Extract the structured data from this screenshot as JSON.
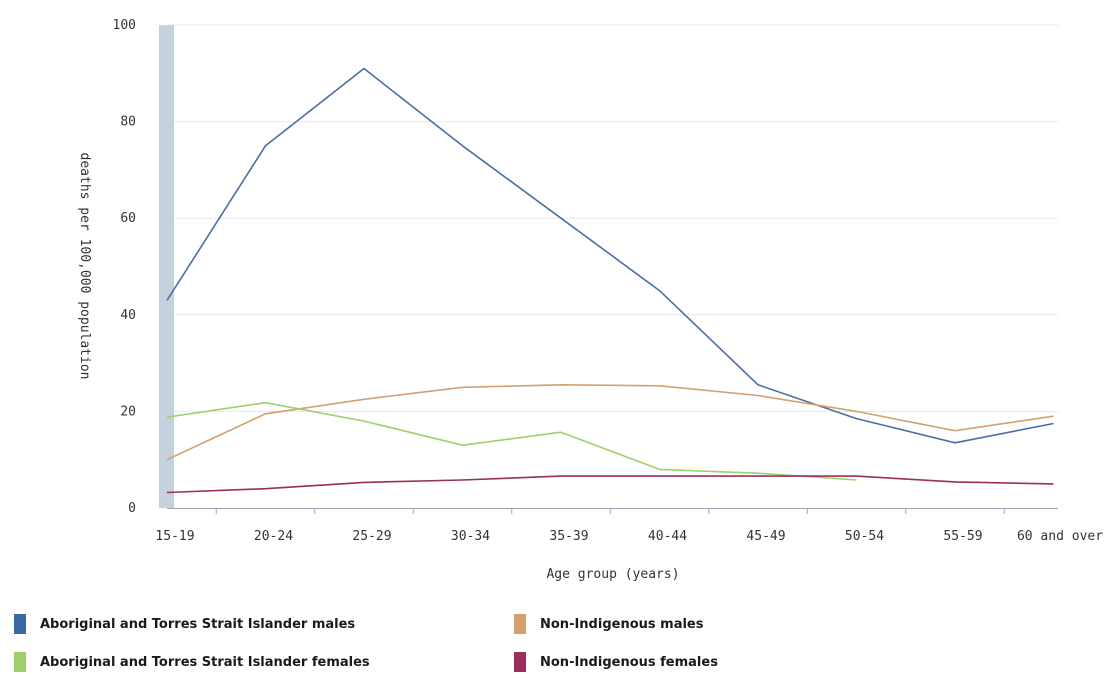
{
  "chart_data": {
    "type": "line",
    "title": "",
    "xlabel": "Age group (years)",
    "ylabel": "deaths per 100,000 population",
    "ylim": [
      0,
      100
    ],
    "yticks": [
      0,
      20,
      40,
      60,
      80,
      100
    ],
    "grid": true,
    "legend_position": "bottom",
    "categories": [
      "15-19",
      "20-24",
      "25-29",
      "30-34",
      "35-39",
      "40-44",
      "45-49",
      "50-54",
      "55-59",
      "60 and over"
    ],
    "series": [
      {
        "name": "Aboriginal and Torres Strait Islander males",
        "color": "#4a6fa0",
        "values": [
          43,
          75,
          91,
          75,
          60,
          45,
          25.5,
          18.5,
          13.5,
          17.5
        ]
      },
      {
        "name": "Non-Indigenous males",
        "color": "#d4a06e",
        "values": [
          10,
          19.5,
          22.5,
          25,
          25.5,
          25.3,
          23.3,
          20,
          16,
          19
        ]
      },
      {
        "name": "Aboriginal and Torres Strait Islander females",
        "color": "#9fcf6e",
        "values": [
          18.8,
          21.8,
          18,
          13,
          15.7,
          8,
          7.2,
          5.8,
          null,
          null
        ]
      },
      {
        "name": "Non-Indigenous females",
        "color": "#9a2e5c",
        "values": [
          3.2,
          4,
          5.3,
          5.8,
          6.6,
          6.6,
          6.6,
          6.6,
          5.4,
          5
        ]
      }
    ]
  }
}
